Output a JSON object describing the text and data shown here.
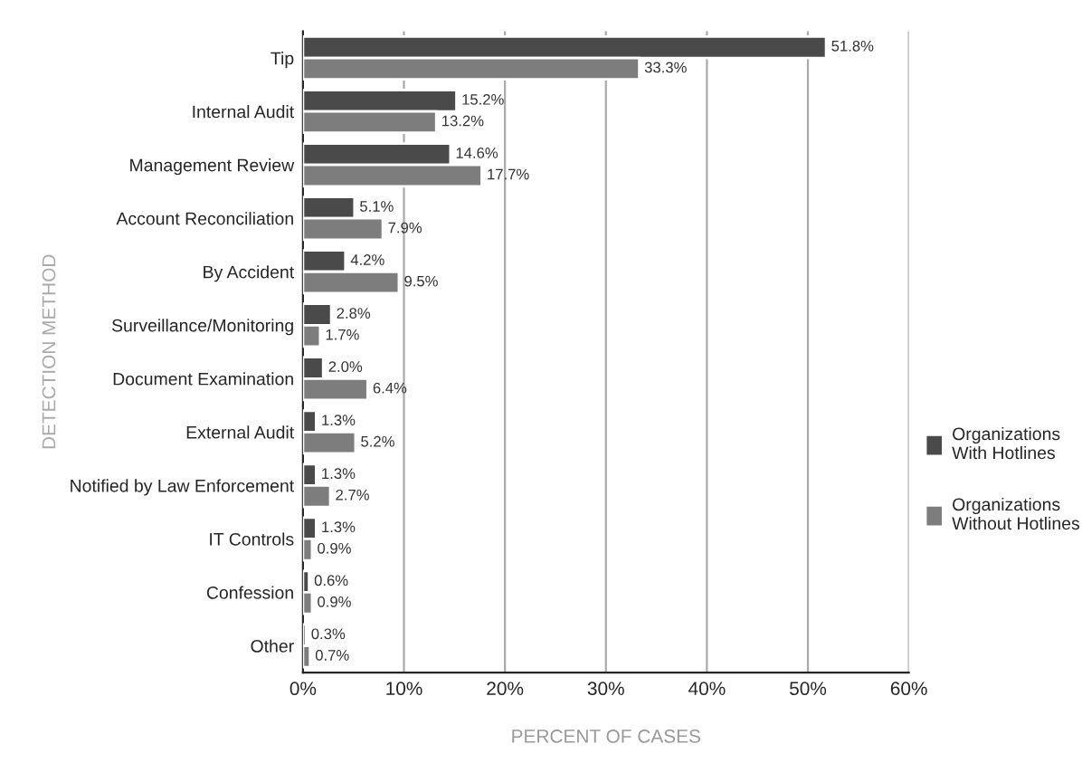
{
  "chart_data": {
    "type": "bar",
    "orientation": "horizontal",
    "xlabel": "PERCENT OF CASES",
    "ylabel": "DETECTION METHOD",
    "categories": [
      "Tip",
      "Internal Audit",
      "Management Review",
      "Account Reconciliation",
      "By Accident",
      "Surveillance/Monitoring",
      "Document Examination",
      "External Audit",
      "Notified by Law Enforcement",
      "IT Controls",
      "Confession",
      "Other"
    ],
    "series": [
      {
        "name": "Organizations With Hotlines",
        "color": "#4a4a4a",
        "values": [
          51.8,
          15.2,
          14.6,
          5.1,
          4.2,
          2.8,
          2.0,
          1.3,
          1.3,
          1.3,
          0.6,
          0.3
        ],
        "value_labels": [
          "51.8%",
          "15.2%",
          "14.6%",
          "5.1%",
          "4.2%",
          "2.8%",
          "2.0%",
          "1.3%",
          "1.3%",
          "1.3%",
          "0.6%",
          "0.3%"
        ]
      },
      {
        "name": "Organizations Without Hotlines",
        "color": "#7d7d7d",
        "values": [
          33.3,
          13.2,
          17.7,
          7.9,
          9.5,
          1.7,
          6.4,
          5.2,
          2.7,
          0.9,
          0.9,
          0.7
        ],
        "value_labels": [
          "33.3%",
          "13.2%",
          "17.7%",
          "7.9%",
          "9.5%",
          "1.7%",
          "6.4%",
          "5.2%",
          "2.7%",
          "0.9%",
          "0.9%",
          "0.7%"
        ]
      }
    ],
    "xlim": [
      0,
      60
    ],
    "xticks": [
      {
        "value": 0,
        "label": "0%"
      },
      {
        "value": 10,
        "label": "10%"
      },
      {
        "value": 20,
        "label": "20%"
      },
      {
        "value": 30,
        "label": "30%"
      },
      {
        "value": 40,
        "label": "40%"
      },
      {
        "value": 50,
        "label": "50%"
      },
      {
        "value": 60,
        "label": "60%"
      }
    ],
    "grid": "x",
    "legend": "right"
  }
}
